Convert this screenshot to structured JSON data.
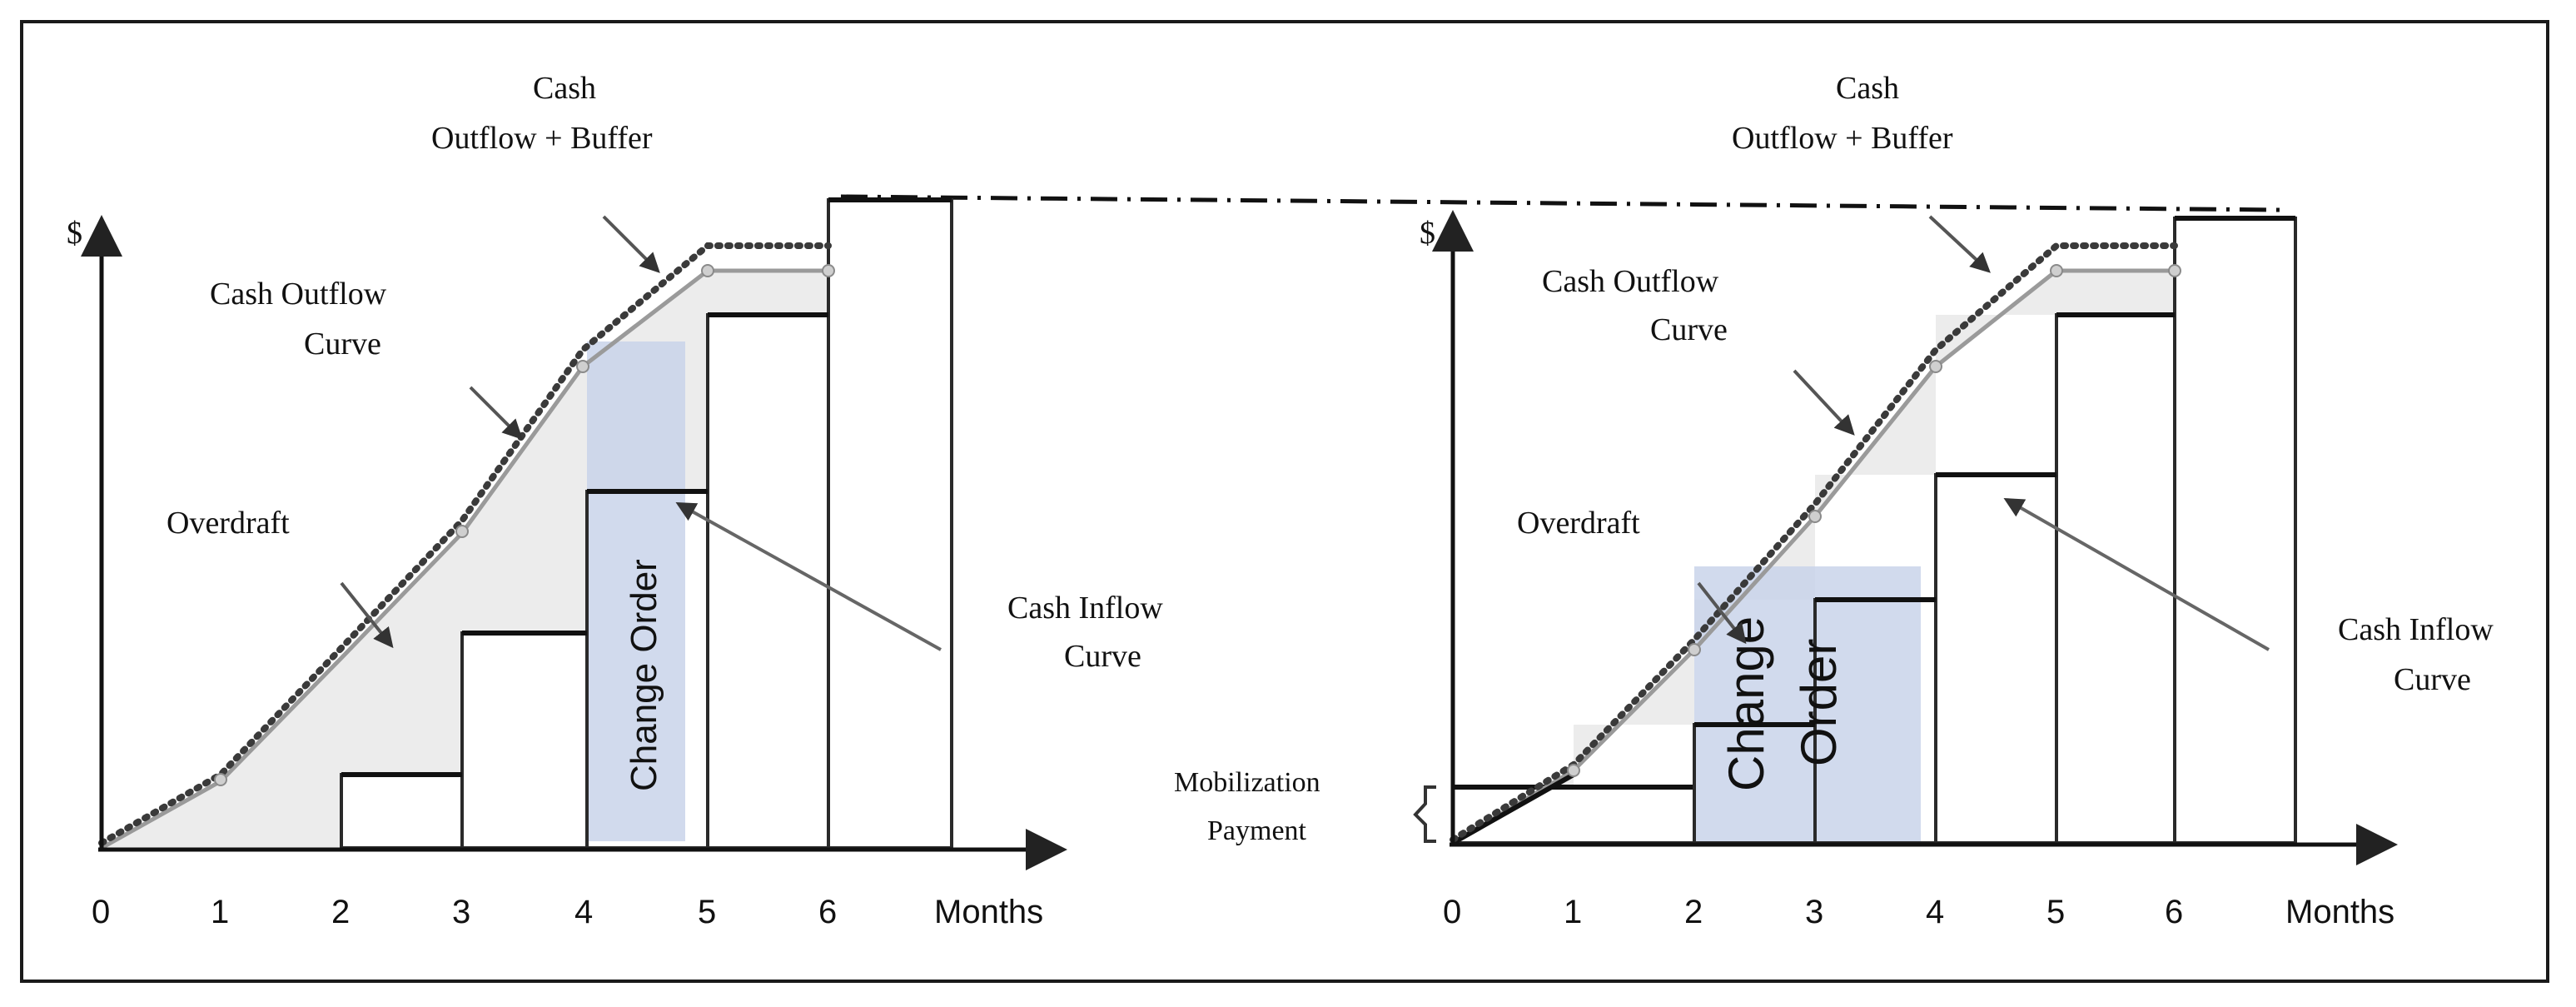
{
  "left_panel": {
    "y_axis_label": "$",
    "x_ticks": [
      "0",
      "1",
      "2",
      "3",
      "4",
      "5",
      "6"
    ],
    "x_axis_label": "Months",
    "labels": {
      "buffer_line1": "Cash",
      "buffer_line2": "Outflow + Buffer",
      "outflow_line1": "Cash Outflow",
      "outflow_line2": "Curve",
      "overdraft": "Overdraft",
      "inflow_line1": "Cash Inflow",
      "inflow_line2": "Curve",
      "change_order": "Change Order"
    }
  },
  "right_panel": {
    "y_axis_label": "$",
    "x_ticks": [
      "0",
      "1",
      "2",
      "3",
      "4",
      "5",
      "6"
    ],
    "x_axis_label": "Months",
    "labels": {
      "buffer_line1": "Cash",
      "buffer_line2": "Outflow + Buffer",
      "outflow_line1": "Cash Outflow",
      "outflow_line2": "Curve",
      "overdraft": "Overdraft",
      "inflow_line1": "Cash Inflow",
      "inflow_line2": "Curve",
      "mobilization_line1": "Mobilization",
      "mobilization_line2": "Payment",
      "change_order_word1": "Change",
      "change_order_word2": "Order"
    }
  },
  "colors": {
    "overdraft_fill": "#ececec",
    "change_order_fill": "#c9d3ea",
    "outflow_line": "#9a9a9a",
    "axis": "#111111"
  }
}
